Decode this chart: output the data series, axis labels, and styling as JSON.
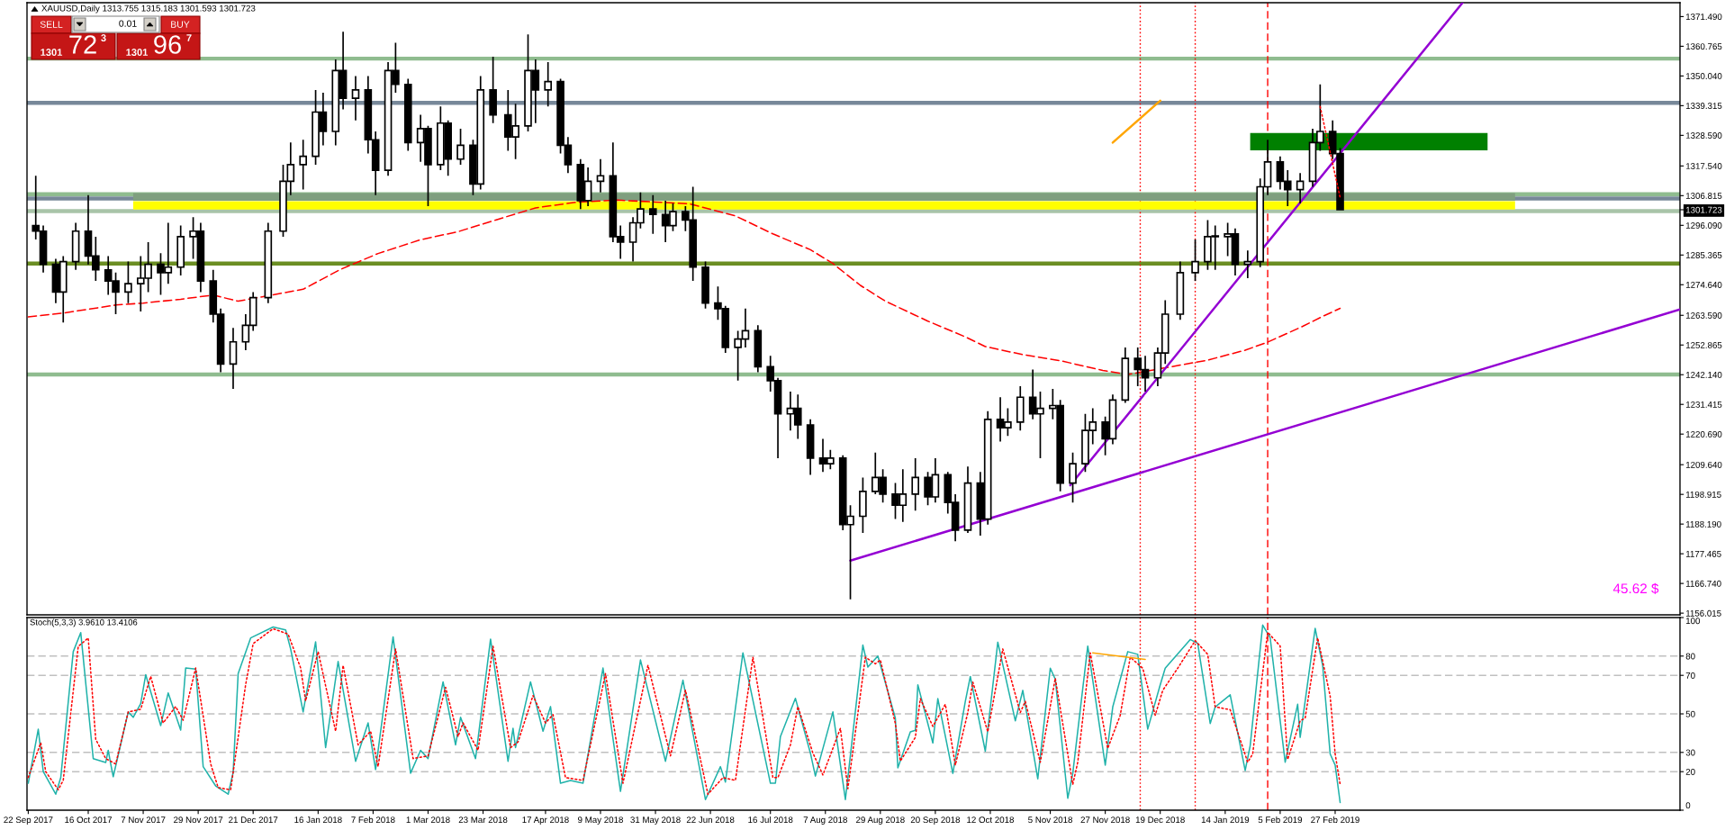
{
  "chart_data": [
    {
      "type": "candlestick",
      "title": "XAUUSD,Daily 1313.755 1315.183 1301.593 1301.723",
      "x": [
        "2017-09-25",
        "2017-09-28",
        "2017-10-03",
        "2017-10-06",
        "2017-10-11",
        "2017-10-16",
        "2017-10-19",
        "2017-10-24",
        "2017-10-27",
        "2017-11-01",
        "2017-11-06",
        "2017-11-09",
        "2017-11-14",
        "2017-11-17",
        "2017-11-22",
        "2017-11-27",
        "2017-11-30",
        "2017-12-05",
        "2017-12-08",
        "2017-12-13",
        "2017-12-18",
        "2017-12-21",
        "2017-12-27",
        "2018-01-02",
        "2018-01-05",
        "2018-01-10",
        "2018-01-15",
        "2018-01-18",
        "2018-01-23",
        "2018-01-26",
        "2018-01-31",
        "2018-02-05",
        "2018-02-08",
        "2018-02-13",
        "2018-02-16",
        "2018-02-21",
        "2018-02-26",
        "2018-03-01",
        "2018-03-06",
        "2018-03-09",
        "2018-03-14",
        "2018-03-19",
        "2018-03-22",
        "2018-03-27",
        "2018-04-02",
        "2018-04-05",
        "2018-04-10",
        "2018-04-13",
        "2018-04-18",
        "2018-04-23",
        "2018-04-26",
        "2018-05-01",
        "2018-05-04",
        "2018-05-09",
        "2018-05-14",
        "2018-05-17",
        "2018-05-22",
        "2018-05-25",
        "2018-05-30",
        "2018-06-04",
        "2018-06-07",
        "2018-06-12",
        "2018-06-15",
        "2018-06-20",
        "2018-06-25",
        "2018-06-28",
        "2018-07-03",
        "2018-07-06",
        "2018-07-11",
        "2018-07-16",
        "2018-07-19",
        "2018-07-24",
        "2018-07-27",
        "2018-08-01",
        "2018-08-06",
        "2018-08-09",
        "2018-08-14",
        "2018-08-17",
        "2018-08-22",
        "2018-08-27",
        "2018-08-30",
        "2018-09-04",
        "2018-09-07",
        "2018-09-12",
        "2018-09-17",
        "2018-09-20",
        "2018-09-25",
        "2018-09-28",
        "2018-10-03",
        "2018-10-08",
        "2018-10-11",
        "2018-10-16",
        "2018-10-19",
        "2018-10-24",
        "2018-10-29",
        "2018-11-01",
        "2018-11-06",
        "2018-11-09",
        "2018-11-14",
        "2018-11-19",
        "2018-11-22",
        "2018-11-27",
        "2018-11-30",
        "2018-12-05",
        "2018-12-10",
        "2018-12-13",
        "2018-12-18",
        "2018-12-21",
        "2018-12-27",
        "2019-01-02",
        "2019-01-07",
        "2019-01-10",
        "2019-01-15",
        "2019-01-18",
        "2019-01-23",
        "2019-01-28",
        "2019-01-31",
        "2019-02-05",
        "2019-02-08",
        "2019-02-13",
        "2019-02-18",
        "2019-02-21",
        "2019-02-26",
        "2019-03-01"
      ],
      "ohlc": [
        [
          1296,
          1314,
          1291,
          1294
        ],
        [
          1294,
          1296,
          1279,
          1282
        ],
        [
          1282,
          1284,
          1268,
          1272
        ],
        [
          1272,
          1285,
          1261,
          1283
        ],
        [
          1283,
          1297,
          1280,
          1294
        ],
        [
          1294,
          1307,
          1282,
          1285
        ],
        [
          1285,
          1292,
          1276,
          1280
        ],
        [
          1280,
          1285,
          1271,
          1276
        ],
        [
          1276,
          1279,
          1264,
          1272
        ],
        [
          1272,
          1283,
          1268,
          1275
        ],
        [
          1275,
          1285,
          1265,
          1277
        ],
        [
          1277,
          1290,
          1272,
          1282
        ],
        [
          1282,
          1286,
          1271,
          1279
        ],
        [
          1279,
          1297,
          1275,
          1281
        ],
        [
          1281,
          1296,
          1278,
          1292
        ],
        [
          1292,
          1299,
          1284,
          1294
        ],
        [
          1294,
          1297,
          1272,
          1276
        ],
        [
          1276,
          1280,
          1261,
          1264
        ],
        [
          1264,
          1266,
          1243,
          1246
        ],
        [
          1246,
          1259,
          1237,
          1254
        ],
        [
          1254,
          1264,
          1251,
          1260
        ],
        [
          1260,
          1272,
          1258,
          1270
        ],
        [
          1270,
          1297,
          1268,
          1294
        ],
        [
          1294,
          1318,
          1292,
          1312
        ],
        [
          1312,
          1326,
          1307,
          1318
        ],
        [
          1318,
          1327,
          1309,
          1321
        ],
        [
          1321,
          1345,
          1318,
          1337
        ],
        [
          1337,
          1344,
          1325,
          1330
        ],
        [
          1330,
          1356,
          1325,
          1352
        ],
        [
          1352,
          1366,
          1338,
          1342
        ],
        [
          1342,
          1350,
          1334,
          1345
        ],
        [
          1345,
          1350,
          1322,
          1327
        ],
        [
          1327,
          1330,
          1307,
          1316
        ],
        [
          1316,
          1355,
          1314,
          1352
        ],
        [
          1352,
          1362,
          1344,
          1347
        ],
        [
          1347,
          1349,
          1323,
          1326
        ],
        [
          1326,
          1336,
          1319,
          1331
        ],
        [
          1331,
          1332,
          1303,
          1318
        ],
        [
          1318,
          1339,
          1316,
          1333
        ],
        [
          1333,
          1334,
          1314,
          1320
        ],
        [
          1320,
          1331,
          1318,
          1325
        ],
        [
          1325,
          1327,
          1307,
          1311
        ],
        [
          1311,
          1350,
          1309,
          1345
        ],
        [
          1345,
          1357,
          1333,
          1336
        ],
        [
          1336,
          1345,
          1323,
          1328
        ],
        [
          1328,
          1340,
          1320,
          1332
        ],
        [
          1332,
          1365,
          1330,
          1352
        ],
        [
          1352,
          1356,
          1333,
          1345
        ],
        [
          1345,
          1355,
          1339,
          1348
        ],
        [
          1348,
          1349,
          1322,
          1325
        ],
        [
          1325,
          1328,
          1315,
          1318
        ],
        [
          1318,
          1320,
          1302,
          1305
        ],
        [
          1305,
          1317,
          1303,
          1312
        ],
        [
          1312,
          1320,
          1308,
          1314
        ],
        [
          1314,
          1326,
          1290,
          1292
        ],
        [
          1292,
          1296,
          1284,
          1290
        ],
        [
          1290,
          1299,
          1283,
          1297
        ],
        [
          1297,
          1308,
          1295,
          1302
        ],
        [
          1302,
          1307,
          1293,
          1300
        ],
        [
          1300,
          1305,
          1290,
          1296
        ],
        [
          1296,
          1304,
          1294,
          1301
        ],
        [
          1301,
          1303,
          1294,
          1298
        ],
        [
          1298,
          1310,
          1276,
          1281
        ],
        [
          1281,
          1283,
          1266,
          1268
        ],
        [
          1268,
          1274,
          1262,
          1266
        ],
        [
          1266,
          1267,
          1250,
          1252
        ],
        [
          1252,
          1258,
          1240,
          1255
        ],
        [
          1255,
          1266,
          1252,
          1258
        ],
        [
          1258,
          1260,
          1243,
          1245
        ],
        [
          1245,
          1249,
          1236,
          1240
        ],
        [
          1240,
          1241,
          1212,
          1228
        ],
        [
          1228,
          1236,
          1222,
          1230
        ],
        [
          1230,
          1235,
          1219,
          1224
        ],
        [
          1224,
          1226,
          1206,
          1212
        ],
        [
          1212,
          1219,
          1207,
          1210
        ],
        [
          1210,
          1215,
          1208,
          1212
        ],
        [
          1212,
          1213,
          1186,
          1188
        ],
        [
          1188,
          1195,
          1161,
          1191
        ],
        [
          1191,
          1205,
          1185,
          1200
        ],
        [
          1200,
          1214,
          1199,
          1205
        ],
        [
          1205,
          1208,
          1196,
          1199
        ],
        [
          1199,
          1203,
          1190,
          1195
        ],
        [
          1195,
          1208,
          1189,
          1199
        ],
        [
          1199,
          1212,
          1193,
          1205
        ],
        [
          1205,
          1207,
          1195,
          1198
        ],
        [
          1198,
          1212,
          1196,
          1206
        ],
        [
          1206,
          1207,
          1192,
          1196
        ],
        [
          1196,
          1199,
          1182,
          1186
        ],
        [
          1186,
          1209,
          1185,
          1203
        ],
        [
          1203,
          1207,
          1184,
          1190
        ],
        [
          1190,
          1229,
          1188,
          1226
        ],
        [
          1226,
          1234,
          1218,
          1223
        ],
        [
          1223,
          1230,
          1220,
          1225
        ],
        [
          1225,
          1238,
          1222,
          1234
        ],
        [
          1234,
          1244,
          1226,
          1228
        ],
        [
          1228,
          1236,
          1212,
          1230
        ],
        [
          1230,
          1237,
          1226,
          1231
        ],
        [
          1231,
          1233,
          1200,
          1203
        ],
        [
          1203,
          1214,
          1196,
          1210
        ],
        [
          1210,
          1228,
          1207,
          1222
        ],
        [
          1222,
          1230,
          1217,
          1225
        ],
        [
          1225,
          1227,
          1213,
          1219
        ],
        [
          1219,
          1235,
          1217,
          1233
        ],
        [
          1233,
          1252,
          1232,
          1248
        ],
        [
          1248,
          1252,
          1238,
          1244
        ],
        [
          1244,
          1249,
          1236,
          1241
        ],
        [
          1241,
          1252,
          1238,
          1250
        ],
        [
          1250,
          1269,
          1246,
          1264
        ],
        [
          1264,
          1283,
          1262,
          1279
        ],
        [
          1279,
          1291,
          1276,
          1283
        ],
        [
          1283,
          1298,
          1280,
          1292
        ],
        [
          1292,
          1296,
          1280,
          1292
        ],
        [
          1292,
          1297,
          1285,
          1293
        ],
        [
          1293,
          1295,
          1278,
          1282
        ],
        [
          1282,
          1287,
          1277,
          1283
        ],
        [
          1283,
          1313,
          1281,
          1310
        ],
        [
          1310,
          1327,
          1307,
          1319
        ],
        [
          1319,
          1321,
          1309,
          1312
        ],
        [
          1312,
          1316,
          1303,
          1309
        ],
        [
          1309,
          1315,
          1304,
          1312
        ],
        [
          1312,
          1331,
          1310,
          1326
        ],
        [
          1326,
          1347,
          1323,
          1330
        ],
        [
          1330,
          1334,
          1320,
          1322
        ],
        [
          1322,
          1324,
          1301.593,
          1301.723
        ]
      ],
      "series": [
        {
          "type": "line",
          "color": "#7f9f7f",
          "x": [
            "2017-11-03",
            "2019-05-10"
          ],
          "values": [
            null,
            null
          ],
          "lower": [
            1305.0,
            1305.0
          ],
          "upper": [
            1307.7,
            1307.7
          ]
        },
        {
          "type": "line",
          "color": "#ffff00",
          "x": [
            "2017-11-03",
            "2019-05-10"
          ],
          "values": [
            null,
            null
          ],
          "lower": [
            1301.8,
            1301.8
          ],
          "upper": [
            1304.8,
            1304.8
          ]
        },
        {
          "type": "line",
          "color": "#008000",
          "x": [
            "2019-01-24",
            "2019-04-29"
          ],
          "values": [
            null,
            null
          ],
          "lower": [
            1323.2,
            1323.2
          ],
          "upper": [
            1329.4,
            1329.4
          ]
        },
        {
          "type": "line",
          "color": "#ff0000",
          "line_style": "dashed",
          "x": [
            "2017-09-22",
            "2017-10-06",
            "2017-10-27",
            "2017-11-07",
            "2017-11-22",
            "2017-12-05",
            "2017-12-15",
            "2018-01-10",
            "2018-01-25",
            "2018-02-09",
            "2018-02-26",
            "2018-03-13",
            "2018-03-28",
            "2018-04-13",
            "2018-04-30",
            "2018-05-16",
            "2018-05-31",
            "2018-06-14",
            "2018-07-02",
            "2018-07-17",
            "2018-08-01",
            "2018-08-10",
            "2018-08-21",
            "2018-08-31",
            "2018-09-17",
            "2018-10-02",
            "2018-10-10",
            "2018-10-25",
            "2018-11-09",
            "2018-11-26",
            "2018-12-06",
            "2019-01-07",
            "2019-01-22",
            "2019-01-31",
            "2019-02-14",
            "2019-02-22",
            "2019-03-01"
          ],
          "values": [
            1263.0,
            1264.4,
            1267.3,
            1268.0,
            1269.4,
            1270.9,
            1268.7,
            1273.0,
            1280.2,
            1285.9,
            1290.9,
            1293.8,
            1298.0,
            1302.4,
            1304.5,
            1305.2,
            1304.5,
            1303.8,
            1299.5,
            1293.0,
            1287.3,
            1282.3,
            1274.4,
            1268.7,
            1261.5,
            1255.8,
            1252.3,
            1249.4,
            1247.2,
            1243.7,
            1242.2,
            1247.4,
            1251.0,
            1253.9,
            1259.6,
            1263.2,
            1266.1
          ]
        },
        {
          "type": "line",
          "color": "#9400d3",
          "x": [
            "2018-08-17",
            "2019-07-15"
          ],
          "values": [
            1175.0,
            1265.7
          ]
        },
        {
          "type": "line",
          "color": "#9400d3",
          "x": [
            "2018-11-13",
            "2019-04-19"
          ],
          "values": [
            1202.2,
            1376.5
          ]
        },
        {
          "type": "line",
          "color": "#ffa500",
          "x": [
            "2018-11-30",
            "2018-12-19"
          ],
          "values": [
            1326.0,
            1341.1
          ]
        },
        {
          "type": "line",
          "color": "#ff0000",
          "line_style": "dotted",
          "x": [
            "2019-02-21",
            "2019-03-01"
          ],
          "values": [
            1339.0,
            1306.1
          ]
        }
      ],
      "xlim": [
        "2017-09-21T12:00",
        "2019-07-15"
      ],
      "ylim": [
        1155.4,
        1376.5
      ],
      "yticks": [
        {
          "value": 1371.49,
          "label": "1371.490"
        },
        {
          "value": 1360.765,
          "label": "1360.765"
        },
        {
          "value": 1350.04,
          "label": "1350.040"
        },
        {
          "value": 1339.315,
          "label": "1339.315"
        },
        {
          "value": 1328.59,
          "label": "1328.590"
        },
        {
          "value": 1317.54,
          "label": "1317.540"
        },
        {
          "value": 1306.815,
          "label": "1306.815"
        },
        {
          "value": 1301.723,
          "label": "1301.723"
        },
        {
          "value": 1296.09,
          "label": "1296.090"
        },
        {
          "value": 1285.365,
          "label": "1285.365"
        },
        {
          "value": 1274.64,
          "label": "1274.640"
        },
        {
          "value": 1263.59,
          "label": "1263.590"
        },
        {
          "value": 1252.865,
          "label": "1252.865"
        },
        {
          "value": 1242.14,
          "label": "1242.140"
        },
        {
          "value": 1231.415,
          "label": "1231.415"
        },
        {
          "value": 1220.69,
          "label": "1220.690"
        },
        {
          "value": 1209.64,
          "label": "1209.640"
        },
        {
          "value": 1198.915,
          "label": "1198.915"
        },
        {
          "value": 1188.19,
          "label": "1188.190"
        },
        {
          "value": 1177.465,
          "label": "1177.465"
        },
        {
          "value": 1166.74,
          "label": "1166.740"
        },
        {
          "value": 1156.015,
          "label": "1156.015"
        }
      ],
      "tick_labels": "y",
      "ref_lines": [
        {
          "axis": "y",
          "value": 1356.3,
          "color": "#8fbc8f"
        },
        {
          "axis": "y",
          "value": 1340.3,
          "color": "#778899"
        },
        {
          "axis": "y",
          "value": 1307.3,
          "color": "#8fbc8f"
        },
        {
          "axis": "y",
          "value": 1305.8,
          "color": "#778899"
        },
        {
          "axis": "y",
          "value": 1301.2,
          "color": "#a8c4a8"
        },
        {
          "axis": "y",
          "value": 1282.3,
          "color": "#6b8e23"
        },
        {
          "axis": "y",
          "value": 1242.2,
          "color": "#8fbc8f"
        },
        {
          "axis": "x",
          "value": "2018-12-11",
          "color": "#ff0000",
          "line_style": "dotted"
        },
        {
          "axis": "x",
          "value": "2019-01-02",
          "color": "#ff0000",
          "line_style": "dotted"
        },
        {
          "axis": "x",
          "value": "2019-01-31",
          "color": "#ff0000",
          "line_style": "dashed"
        }
      ],
      "annotations": [
        "SELL",
        "0.01",
        "BUY",
        "1301",
        "72",
        "3",
        "1301",
        "96",
        "7",
        "45.62 $"
      ]
    },
    {
      "type": "line",
      "title": "Stoch(5,3,3) 3.9610 13.4106",
      "series": [
        {
          "color": "#20b2aa",
          "x": [
            "2017-09-22",
            "2017-09-26",
            "2017-09-28",
            "2017-10-03",
            "2017-10-05",
            "2017-10-10",
            "2017-10-13",
            "2017-10-18",
            "2017-10-23",
            "2017-10-24",
            "2017-10-25",
            "2017-10-26",
            "2017-11-01",
            "2017-11-03",
            "2017-11-06",
            "2017-11-08",
            "2017-11-14",
            "2017-11-17",
            "2017-11-22",
            "2017-11-24",
            "2017-11-28",
            "2017-12-01",
            "2017-12-06",
            "2017-12-11",
            "2017-12-13",
            "2017-12-15",
            "2017-12-20",
            "2017-12-29",
            "2018-01-03",
            "2018-01-05",
            "2018-01-10",
            "2018-01-15",
            "2018-01-19",
            "2018-01-24",
            "2018-01-31",
            "2018-02-05",
            "2018-02-08",
            "2018-02-15",
            "2018-02-22",
            "2018-02-26",
            "2018-03-01",
            "2018-03-07",
            "2018-03-12",
            "2018-03-14",
            "2018-03-20",
            "2018-03-26",
            "2018-04-02",
            "2018-04-04",
            "2018-04-05",
            "2018-04-11",
            "2018-04-16",
            "2018-04-19",
            "2018-04-23",
            "2018-04-27",
            "2018-05-02",
            "2018-05-10",
            "2018-05-17",
            "2018-05-25",
            "2018-06-04",
            "2018-06-11",
            "2018-06-20",
            "2018-06-26",
            "2018-06-28",
            "2018-07-05",
            "2018-07-16",
            "2018-07-18",
            "2018-07-20",
            "2018-07-26",
            "2018-08-01",
            "2018-08-03",
            "2018-08-10",
            "2018-08-15",
            "2018-08-22",
            "2018-08-24",
            "2018-08-28",
            "2018-09-04",
            "2018-09-05",
            "2018-09-10",
            "2018-09-12",
            "2018-09-13",
            "2018-09-19",
            "2018-09-21",
            "2018-09-27",
            "2018-10-02",
            "2018-10-04",
            "2018-10-10",
            "2018-10-15",
            "2018-10-22",
            "2018-10-25",
            "2018-10-31",
            "2018-11-05",
            "2018-11-07",
            "2018-11-12",
            "2018-11-14",
            "2018-11-20",
            "2018-11-27",
            "2018-11-30",
            "2018-12-06",
            "2018-12-10",
            "2018-12-14",
            "2018-12-19",
            "2018-12-21",
            "2018-12-31",
            "2019-01-03",
            "2019-01-08",
            "2019-01-10",
            "2019-01-16",
            "2019-01-22",
            "2019-01-24",
            "2019-01-29",
            "2019-02-01",
            "2019-02-07",
            "2019-02-12",
            "2019-02-13",
            "2019-02-19",
            "2019-02-22",
            "2019-02-25",
            "2019-02-27",
            "2019-03-01"
          ],
          "values": [
            14,
            42,
            20,
            8.3,
            16.9,
            82.3,
            92.2,
            26.8,
            24.8,
            31.1,
            24.0,
            17.4,
            51.0,
            48.2,
            55.3,
            70.3,
            43.9,
            60.9,
            41.6,
            73.8,
            73.2,
            22.6,
            12.6,
            8.3,
            19.7,
            70.9,
            89.4,
            95.1,
            93.6,
            83.7,
            51.0,
            87.4,
            32.5,
            77.2,
            25.4,
            45.3,
            21.1,
            90.0,
            19.2,
            31.1,
            26.8,
            66.6,
            33.9,
            48.2,
            26.8,
            88.8,
            25.4,
            42.5,
            32.5,
            66.6,
            41.0,
            53.8,
            14.0,
            15.4,
            14.0,
            73.8,
            9.8,
            78.0,
            25.4,
            67.5,
            5.5,
            22.6,
            14.6,
            81.7,
            14.0,
            14.0,
            38.2,
            58.1,
            29.7,
            17.7,
            51.0,
            5.5,
            85.7,
            74.3,
            80.0,
            47.8,
            22.0,
            40.7,
            41.5,
            65.1,
            34.9,
            57.9,
            19.1,
            56.5,
            69.4,
            30.6,
            87.2,
            46.4,
            62.2,
            16.3,
            73.7,
            68.0,
            6.2,
            19.1,
            85.2,
            23.4,
            53.6,
            82.3,
            80.9,
            42.1,
            65.1,
            73.7,
            88.6,
            86.6,
            45.0,
            53.6,
            59.9,
            20.6,
            33.5,
            96.1,
            89.5,
            24.9,
            55.0,
            37.8,
            94.4,
            75.1,
            29.2,
            23.4,
            3.961
          ]
        },
        {
          "color": "#ff0000",
          "line_style": "dotted",
          "x": [
            "2017-09-22",
            "2017-09-27",
            "2017-09-29",
            "2017-10-04",
            "2017-10-06",
            "2017-10-12",
            "2017-10-16",
            "2017-10-19",
            "2017-10-23",
            "2017-10-27",
            "2017-11-01",
            "2017-11-06",
            "2017-11-10",
            "2017-11-15",
            "2017-11-20",
            "2017-11-23",
            "2017-11-28",
            "2017-12-04",
            "2017-12-07",
            "2017-12-12",
            "2017-12-18",
            "2017-12-21",
            "2017-12-29",
            "2018-01-04",
            "2018-01-09",
            "2018-01-11",
            "2018-01-16",
            "2018-01-23",
            "2018-01-26",
            "2018-02-01",
            "2018-02-06",
            "2018-02-09",
            "2018-02-16",
            "2018-02-23",
            "2018-03-01",
            "2018-03-08",
            "2018-03-13",
            "2018-03-15",
            "2018-03-21",
            "2018-03-27",
            "2018-04-03",
            "2018-04-06",
            "2018-04-12",
            "2018-04-17",
            "2018-04-20",
            "2018-04-25",
            "2018-05-02",
            "2018-05-11",
            "2018-05-18",
            "2018-05-28",
            "2018-06-06",
            "2018-06-12",
            "2018-06-21",
            "2018-06-27",
            "2018-07-02",
            "2018-07-09",
            "2018-07-17",
            "2018-07-19",
            "2018-07-24",
            "2018-07-27",
            "2018-08-02",
            "2018-08-06",
            "2018-08-13",
            "2018-08-16",
            "2018-08-23",
            "2018-08-27",
            "2018-08-29",
            "2018-09-04",
            "2018-09-06",
            "2018-09-12",
            "2018-09-14",
            "2018-09-19",
            "2018-09-24",
            "2018-09-28",
            "2018-10-03",
            "2018-10-05",
            "2018-10-11",
            "2018-10-17",
            "2018-10-24",
            "2018-10-26",
            "2018-11-01",
            "2018-11-07",
            "2018-11-14",
            "2018-11-16",
            "2018-11-21",
            "2018-11-28",
            "2018-12-03",
            "2018-12-07",
            "2018-12-12",
            "2018-12-17",
            "2018-12-20",
            "2018-12-26",
            "2019-01-02",
            "2019-01-07",
            "2019-01-10",
            "2019-01-16",
            "2019-01-23",
            "2019-01-25",
            "2019-01-31",
            "2019-02-05",
            "2019-02-08",
            "2019-02-13",
            "2019-02-15",
            "2019-02-20",
            "2019-02-25",
            "2019-02-27",
            "2019-03-01"
          ],
          "values": [
            17,
            35,
            20,
            10.6,
            15.5,
            85,
            89.4,
            36.8,
            26.8,
            24,
            51,
            52.4,
            69.5,
            45.3,
            53.8,
            46.7,
            73.8,
            24,
            11.7,
            10.6,
            65.2,
            86.5,
            94.2,
            91.4,
            73.8,
            56.7,
            82.3,
            41,
            75.2,
            33.9,
            41,
            22.6,
            83.7,
            26.8,
            28.2,
            63.8,
            38.2,
            45.3,
            31.1,
            85.1,
            32.5,
            35.4,
            59.5,
            45.3,
            49.6,
            16.9,
            15.5,
            70.9,
            14,
            75.2,
            28.2,
            62.4,
            8.3,
            16.9,
            15.5,
            79.4,
            16.9,
            16.9,
            33.9,
            53.8,
            29.7,
            18.3,
            42.5,
            11.2,
            79.4,
            76,
            78,
            45,
            25.5,
            37.8,
            57.9,
            43.5,
            55,
            23.4,
            50.7,
            66.5,
            40.7,
            83.7,
            50.7,
            56.5,
            24.9,
            68.5,
            13.4,
            24.9,
            81.7,
            32.1,
            49.3,
            79.4,
            73.7,
            49.3,
            62.2,
            73.7,
            88.0,
            80.9,
            53.6,
            52.2,
            24.9,
            29.2,
            92.4,
            85.2,
            26.3,
            46.4,
            47.8,
            89.5,
            59.3,
            29.2,
            13.4106
          ]
        },
        {
          "color": "#ffa500",
          "x": [
            "2018-11-22",
            "2018-12-13"
          ],
          "values": [
            81.7,
            78.3
          ]
        }
      ],
      "xlim": [
        "2017-09-21T12:00",
        "2019-07-15"
      ],
      "xticks": [
        {
          "value": "2017-09-22",
          "label": "22 Sep 2017"
        },
        {
          "value": "2017-10-16",
          "label": "16 Oct 2017"
        },
        {
          "value": "2017-11-07",
          "label": "7 Nov 2017"
        },
        {
          "value": "2017-11-29",
          "label": "29 Nov 2017"
        },
        {
          "value": "2017-12-21",
          "label": "21 Dec 2017"
        },
        {
          "value": "2018-01-16",
          "label": "16 Jan 2018"
        },
        {
          "value": "2018-02-07",
          "label": "7 Feb 2018"
        },
        {
          "value": "2018-03-01",
          "label": "1 Mar 2018"
        },
        {
          "value": "2018-03-23",
          "label": "23 Mar 2018"
        },
        {
          "value": "2018-04-17",
          "label": "17 Apr 2018"
        },
        {
          "value": "2018-05-09",
          "label": "9 May 2018"
        },
        {
          "value": "2018-05-31",
          "label": "31 May 2018"
        },
        {
          "value": "2018-06-22",
          "label": "22 Jun 2018"
        },
        {
          "value": "2018-07-16",
          "label": "16 Jul 2018"
        },
        {
          "value": "2018-08-07",
          "label": "7 Aug 2018"
        },
        {
          "value": "2018-08-29",
          "label": "29 Aug 2018"
        },
        {
          "value": "2018-09-20",
          "label": "20 Sep 2018"
        },
        {
          "value": "2018-10-12",
          "label": "12 Oct 2018"
        },
        {
          "value": "2018-11-05",
          "label": "5 Nov 2018"
        },
        {
          "value": "2018-11-27",
          "label": "27 Nov 2018"
        },
        {
          "value": "2018-12-19",
          "label": "19 Dec 2018"
        },
        {
          "value": "2019-01-14",
          "label": "14 Jan 2019"
        },
        {
          "value": "2019-02-05",
          "label": "5 Feb 2019"
        },
        {
          "value": "2019-02-27",
          "label": "27 Feb 2019"
        }
      ],
      "ylim": [
        0,
        100
      ],
      "yticks": [
        100,
        80,
        70,
        50,
        30,
        20,
        0
      ],
      "ref_lines": [
        {
          "axis": "y",
          "value": 80,
          "color": "#c0c0c0",
          "line_style": "dashed"
        },
        {
          "axis": "y",
          "value": 70,
          "color": "#c0c0c0",
          "line_style": "dashed"
        },
        {
          "axis": "y",
          "value": 50,
          "color": "#c0c0c0",
          "line_style": "dashed"
        },
        {
          "axis": "y",
          "value": 30,
          "color": "#c0c0c0",
          "line_style": "dashed"
        },
        {
          "axis": "y",
          "value": 20,
          "color": "#c0c0c0",
          "line_style": "dashed"
        },
        {
          "axis": "x",
          "value": "2018-12-11",
          "color": "#ff0000",
          "line_style": "dotted"
        },
        {
          "axis": "x",
          "value": "2019-01-02",
          "color": "#ff0000",
          "line_style": "dotted"
        },
        {
          "axis": "x",
          "value": "2019-01-31",
          "color": "#ff0000",
          "line_style": "dashed"
        }
      ]
    }
  ]
}
